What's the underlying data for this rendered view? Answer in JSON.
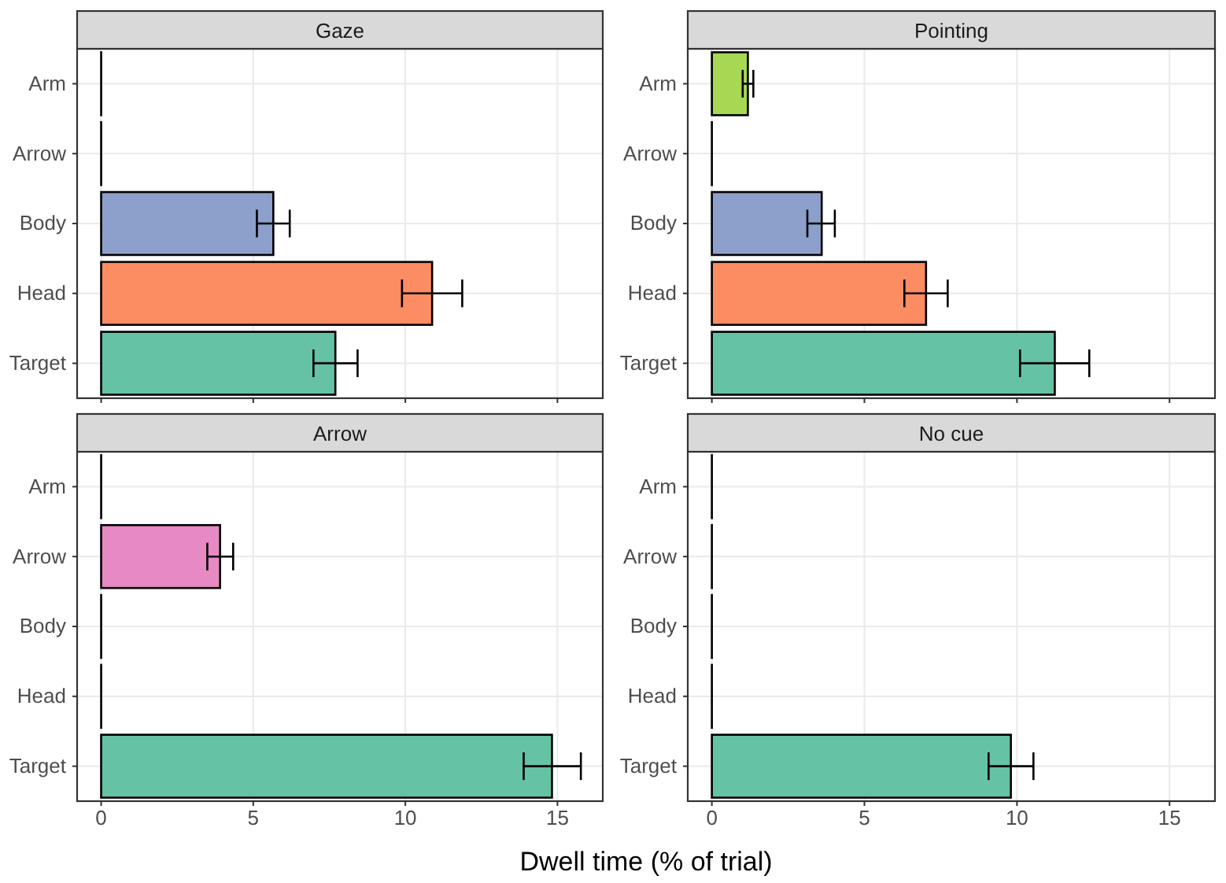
{
  "chart_data": [
    {
      "type": "bar",
      "orientation": "horizontal",
      "title": "Gaze",
      "categories": [
        "Arm",
        "Arrow",
        "Body",
        "Head",
        "Target"
      ],
      "values": [
        0,
        0,
        5.66,
        10.88,
        7.7
      ],
      "colors": [
        "#a6d854",
        "#e78ac3",
        "#8da0cb",
        "#fc8d62",
        "#66c2a5"
      ],
      "errors": [
        null,
        null,
        [
          5.12,
          6.2
        ],
        [
          9.89,
          11.87
        ],
        [
          6.98,
          8.43
        ]
      ],
      "xlim": [
        -0.79,
        16.49
      ],
      "xticks": [
        0,
        5,
        10,
        15
      ],
      "grid": true,
      "tick_labels": "y"
    },
    {
      "type": "bar",
      "orientation": "horizontal",
      "title": "Pointing",
      "categories": [
        "Arm",
        "Arrow",
        "Body",
        "Head",
        "Target"
      ],
      "values": [
        1.18,
        0,
        3.6,
        7.02,
        11.24
      ],
      "colors": [
        "#a6d854",
        "#e78ac3",
        "#8da0cb",
        "#fc8d62",
        "#66c2a5"
      ],
      "errors": [
        [
          1.01,
          1.36
        ],
        null,
        [
          3.13,
          4.03
        ],
        [
          6.31,
          7.73
        ],
        [
          10.1,
          12.37
        ]
      ],
      "xlim": [
        -0.79,
        16.49
      ],
      "xticks": [
        0,
        5,
        10,
        15
      ],
      "grid": true,
      "tick_labels": "y"
    },
    {
      "type": "bar",
      "orientation": "horizontal",
      "title": "Arrow",
      "categories": [
        "Arm",
        "Arrow",
        "Body",
        "Head",
        "Target"
      ],
      "values": [
        0,
        3.91,
        0,
        0,
        14.82
      ],
      "colors": [
        "#a6d854",
        "#e78ac3",
        "#8da0cb",
        "#fc8d62",
        "#66c2a5"
      ],
      "errors": [
        null,
        [
          3.49,
          4.34
        ],
        null,
        null,
        [
          13.89,
          15.77
        ]
      ],
      "xlim": [
        -0.79,
        16.49
      ],
      "xticks": [
        0,
        5,
        10,
        15
      ],
      "grid": true,
      "xlabel": "Dwell time (% of trial)"
    },
    {
      "type": "bar",
      "orientation": "horizontal",
      "title": "No cue",
      "categories": [
        "Arm",
        "Arrow",
        "Body",
        "Head",
        "Target"
      ],
      "values": [
        0,
        0,
        0,
        0,
        9.8
      ],
      "colors": [
        "#a6d854",
        "#e78ac3",
        "#8da0cb",
        "#fc8d62",
        "#66c2a5"
      ],
      "errors": [
        null,
        null,
        null,
        null,
        [
          9.07,
          10.54
        ]
      ],
      "xlim": [
        -0.79,
        16.49
      ],
      "xticks": [
        0,
        5,
        10,
        15
      ],
      "grid": true
    }
  ]
}
